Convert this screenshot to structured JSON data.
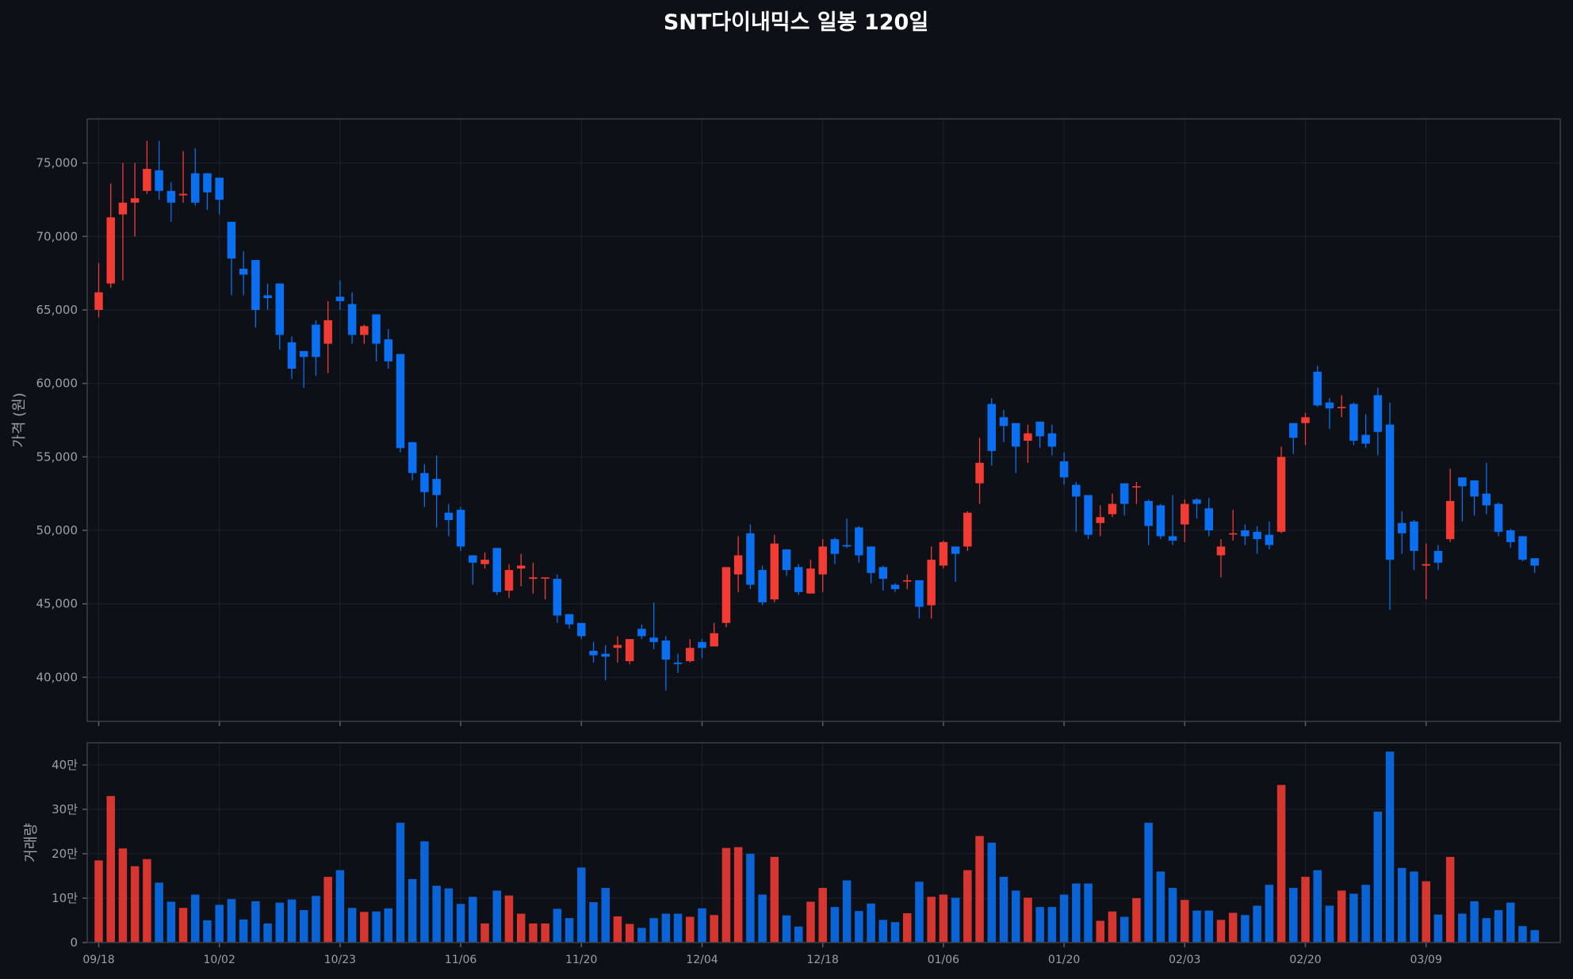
{
  "chart_data": {
    "type": "candlestick",
    "title": "SNT다이내믹스 일봉 120일",
    "ylabel_price": "가격 (원)",
    "ylabel_volume": "거래량",
    "colors": {
      "up": "#f23b33",
      "down": "#0a6ff0",
      "background": "#0d1017"
    },
    "price_axis": {
      "ylim": [
        37000,
        78000
      ],
      "ticks": [
        40000,
        45000,
        50000,
        55000,
        60000,
        65000,
        70000,
        75000
      ],
      "tick_labels": [
        "40,000",
        "45,000",
        "50,000",
        "55,000",
        "60,000",
        "65,000",
        "70,000",
        "75,000"
      ]
    },
    "volume_axis": {
      "ylim": [
        0,
        450000
      ],
      "ticks": [
        0,
        100000,
        200000,
        300000,
        400000
      ],
      "tick_labels": [
        "0",
        "10만",
        "20만",
        "30만",
        "40만"
      ]
    },
    "x_tick_labels": [
      {
        "i": 0,
        "label": "09/18"
      },
      {
        "i": 10,
        "label": "10/02"
      },
      {
        "i": 20,
        "label": "10/23"
      },
      {
        "i": 30,
        "label": "11/06"
      },
      {
        "i": 40,
        "label": "11/20"
      },
      {
        "i": 50,
        "label": "12/04"
      },
      {
        "i": 60,
        "label": "12/18"
      },
      {
        "i": 70,
        "label": "01/06"
      },
      {
        "i": 80,
        "label": "01/20"
      },
      {
        "i": 90,
        "label": "02/03"
      },
      {
        "i": 100,
        "label": "02/20"
      },
      {
        "i": 110,
        "label": "03/09"
      }
    ],
    "candles": [
      [
        65000,
        66200,
        64500,
        68200,
        185000
      ],
      [
        66800,
        71300,
        66500,
        73600,
        330000
      ],
      [
        71500,
        72300,
        67000,
        75000,
        212000
      ],
      [
        72300,
        72600,
        70000,
        75000,
        172000
      ],
      [
        73100,
        74600,
        72900,
        76500,
        188000
      ],
      [
        74500,
        73100,
        72500,
        76500,
        135000
      ],
      [
        73100,
        72300,
        71000,
        73700,
        92000
      ],
      [
        72800,
        72900,
        72300,
        75800,
        78000
      ],
      [
        74300,
        72300,
        72100,
        76000,
        108000
      ],
      [
        74300,
        73000,
        71800,
        74300,
        50000
      ],
      [
        74000,
        72500,
        71500,
        74000,
        85000
      ],
      [
        71000,
        68500,
        66000,
        71000,
        98000
      ],
      [
        67800,
        67400,
        66000,
        69000,
        52000
      ],
      [
        68400,
        65000,
        63800,
        68400,
        93000
      ],
      [
        66000,
        65800,
        65000,
        66800,
        43000
      ],
      [
        66800,
        63300,
        62300,
        66800,
        90000
      ],
      [
        62800,
        61000,
        60300,
        63200,
        97000
      ],
      [
        62200,
        61800,
        59700,
        62200,
        73000
      ],
      [
        64000,
        61800,
        60500,
        64300,
        105000
      ],
      [
        62700,
        64300,
        60700,
        65600,
        148000
      ],
      [
        65900,
        65600,
        65000,
        67000,
        163000
      ],
      [
        65400,
        63300,
        62700,
        66200,
        78000
      ],
      [
        63300,
        63900,
        62700,
        64000,
        69000
      ],
      [
        64700,
        62700,
        61500,
        64700,
        70000
      ],
      [
        63000,
        61500,
        61000,
        63700,
        77000
      ],
      [
        62000,
        55600,
        55300,
        62000,
        270000
      ],
      [
        56000,
        53900,
        53400,
        56000,
        143000
      ],
      [
        53900,
        52600,
        51600,
        54500,
        228000
      ],
      [
        53500,
        52400,
        50200,
        55100,
        128000
      ],
      [
        51200,
        50700,
        49600,
        51800,
        122000
      ],
      [
        51400,
        48900,
        48600,
        51600,
        87000
      ],
      [
        48300,
        47800,
        46300,
        48300,
        103000
      ],
      [
        47700,
        48000,
        47400,
        48500,
        43000
      ],
      [
        48800,
        45800,
        45600,
        48800,
        117000
      ],
      [
        45900,
        47300,
        45400,
        47700,
        106000
      ],
      [
        47400,
        47600,
        46200,
        48400,
        65000
      ],
      [
        46700,
        46800,
        45700,
        47800,
        43000
      ],
      [
        46800,
        46800,
        45300,
        46800,
        43000
      ],
      [
        46700,
        44200,
        43700,
        47000,
        76000
      ],
      [
        44300,
        43600,
        43300,
        44300,
        55000
      ],
      [
        43700,
        42800,
        42600,
        43700,
        169000
      ],
      [
        41800,
        41500,
        41000,
        42400,
        91000
      ],
      [
        41600,
        41400,
        39800,
        42200,
        123000
      ],
      [
        42000,
        42200,
        41000,
        42800,
        59000
      ],
      [
        41100,
        42600,
        40900,
        42600,
        42000
      ],
      [
        43300,
        42800,
        42600,
        43600,
        33000
      ],
      [
        42700,
        42400,
        41900,
        45100,
        55000
      ],
      [
        42500,
        41200,
        39100,
        42800,
        65000
      ],
      [
        41000,
        40900,
        40300,
        41600,
        65000
      ],
      [
        41100,
        42000,
        41000,
        42600,
        58000
      ],
      [
        42400,
        42000,
        41300,
        42600,
        77000
      ],
      [
        42100,
        43000,
        42100,
        43700,
        62000
      ],
      [
        43700,
        47500,
        43400,
        47500,
        213000
      ],
      [
        47000,
        48300,
        45800,
        49600,
        215000
      ],
      [
        49800,
        46300,
        46000,
        50400,
        200000
      ],
      [
        47300,
        45100,
        44900,
        47600,
        108000
      ],
      [
        45300,
        49100,
        45100,
        49700,
        193000
      ],
      [
        48700,
        47300,
        46900,
        48700,
        61000
      ],
      [
        47500,
        45800,
        45600,
        47700,
        36000
      ],
      [
        45700,
        47400,
        45700,
        48000,
        92000
      ],
      [
        47000,
        48900,
        45800,
        49400,
        123000
      ],
      [
        49400,
        48400,
        47700,
        49500,
        80000
      ],
      [
        49000,
        48900,
        48800,
        50800,
        140000
      ],
      [
        50200,
        48300,
        47800,
        50300,
        71000
      ],
      [
        48900,
        47100,
        46400,
        48900,
        88000
      ],
      [
        47500,
        46700,
        45900,
        47600,
        51000
      ],
      [
        46300,
        46000,
        45800,
        46400,
        46000
      ],
      [
        46600,
        46600,
        46000,
        47000,
        66000
      ],
      [
        46600,
        44800,
        44000,
        46600,
        137000
      ],
      [
        44900,
        48000,
        44000,
        48900,
        103000
      ],
      [
        47600,
        49200,
        47400,
        49300,
        108000
      ],
      [
        48900,
        48400,
        46500,
        48900,
        101000
      ],
      [
        48900,
        51200,
        48600,
        51300,
        163000
      ],
      [
        53200,
        54600,
        51800,
        56300,
        240000
      ],
      [
        58600,
        55400,
        54400,
        59000,
        225000
      ],
      [
        57700,
        57100,
        56000,
        58200,
        148000
      ],
      [
        57300,
        55700,
        53900,
        57300,
        117000
      ],
      [
        56100,
        56600,
        54600,
        57200,
        101000
      ],
      [
        57400,
        56400,
        55600,
        57400,
        80000
      ],
      [
        56600,
        55700,
        55100,
        57200,
        80000
      ],
      [
        54700,
        53600,
        53100,
        55300,
        108000
      ],
      [
        53100,
        52300,
        49900,
        53300,
        133000
      ],
      [
        52400,
        49700,
        49400,
        52400,
        133000
      ],
      [
        50500,
        50900,
        49600,
        51700,
        49000
      ],
      [
        51100,
        51800,
        50900,
        52500,
        70000
      ],
      [
        53200,
        51800,
        51000,
        53200,
        58000
      ],
      [
        53000,
        53000,
        51800,
        53300,
        100000
      ],
      [
        52000,
        50300,
        49000,
        52100,
        270000
      ],
      [
        51700,
        49600,
        49400,
        51800,
        160000
      ],
      [
        49600,
        49300,
        49000,
        52400,
        123000
      ],
      [
        50400,
        51800,
        49200,
        52100,
        96000
      ],
      [
        52100,
        51800,
        50800,
        52200,
        72000
      ],
      [
        51500,
        50000,
        49600,
        52200,
        72000
      ],
      [
        48300,
        48900,
        46800,
        49400,
        51000
      ],
      [
        49800,
        49800,
        49300,
        51400,
        67000
      ],
      [
        50000,
        49600,
        49000,
        50400,
        62000
      ],
      [
        49900,
        49400,
        48400,
        50300,
        83000
      ],
      [
        49700,
        49000,
        48700,
        50600,
        130000
      ],
      [
        49900,
        55000,
        49800,
        55700,
        355000
      ],
      [
        57300,
        56300,
        55200,
        57300,
        123000
      ],
      [
        57300,
        57700,
        55800,
        58000,
        148000
      ],
      [
        60800,
        58500,
        58400,
        61200,
        163000
      ],
      [
        58700,
        58300,
        56900,
        59000,
        83000
      ],
      [
        58400,
        58400,
        57700,
        59200,
        117000
      ],
      [
        58600,
        56100,
        55800,
        58700,
        110000
      ],
      [
        56500,
        55900,
        55600,
        57900,
        130000
      ],
      [
        59200,
        56700,
        55100,
        59700,
        295000
      ],
      [
        57200,
        48000,
        44600,
        58700,
        430000
      ],
      [
        50500,
        49800,
        48400,
        51300,
        168000
      ],
      [
        50600,
        48600,
        47300,
        50700,
        160000
      ],
      [
        47600,
        47700,
        45300,
        49100,
        138000
      ],
      [
        48600,
        47800,
        47300,
        49000,
        63000
      ],
      [
        49400,
        52000,
        49200,
        54200,
        193000
      ],
      [
        53600,
        53000,
        50600,
        53600,
        65000
      ],
      [
        53400,
        52300,
        51000,
        53400,
        93000
      ],
      [
        52500,
        51700,
        51100,
        54600,
        55000
      ],
      [
        51800,
        49900,
        49600,
        51900,
        73000
      ],
      [
        50000,
        49200,
        48800,
        50100,
        90000
      ],
      [
        49600,
        48000,
        47900,
        49600,
        37000
      ],
      [
        48100,
        47600,
        47100,
        48100,
        28000
      ]
    ]
  }
}
